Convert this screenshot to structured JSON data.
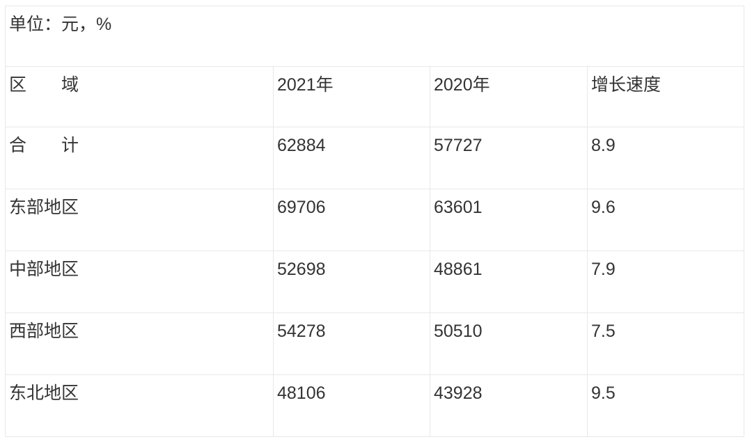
{
  "meta": {
    "background_color": "#ffffff",
    "border_color": "#e8e8e8",
    "text_color": "#333333"
  },
  "table": {
    "unit_note": "单位：元，%",
    "headers": {
      "region": "区　　域",
      "y2021": "2021年",
      "y2020": "2020年",
      "growth": "增长速度"
    },
    "rows": [
      [
        "合　　计",
        "62884",
        "57727",
        "8.9"
      ],
      [
        "东部地区",
        "69706",
        "63601",
        "9.6"
      ],
      [
        "中部地区",
        "52698",
        "48861",
        "7.9"
      ],
      [
        "西部地区",
        "54278",
        "50510",
        "7.5"
      ],
      [
        "东北地区",
        "48106",
        "43928",
        "9.5"
      ]
    ]
  },
  "chart_data": {
    "type": "table",
    "title": "",
    "unit_note": "单位：元，%",
    "columns": [
      "区域",
      "2021年",
      "2020年",
      "增长速度"
    ],
    "rows": [
      {
        "region": "合计",
        "value_2021": 62884,
        "value_2020": 57727,
        "growth_rate": 8.9
      },
      {
        "region": "东部地区",
        "value_2021": 69706,
        "value_2020": 63601,
        "growth_rate": 9.6
      },
      {
        "region": "中部地区",
        "value_2021": 52698,
        "value_2020": 48861,
        "growth_rate": 7.9
      },
      {
        "region": "西部地区",
        "value_2021": 54278,
        "value_2020": 50510,
        "growth_rate": 7.5
      },
      {
        "region": "东北地区",
        "value_2021": 48106,
        "value_2020": 43928,
        "growth_rate": 9.5
      }
    ]
  }
}
